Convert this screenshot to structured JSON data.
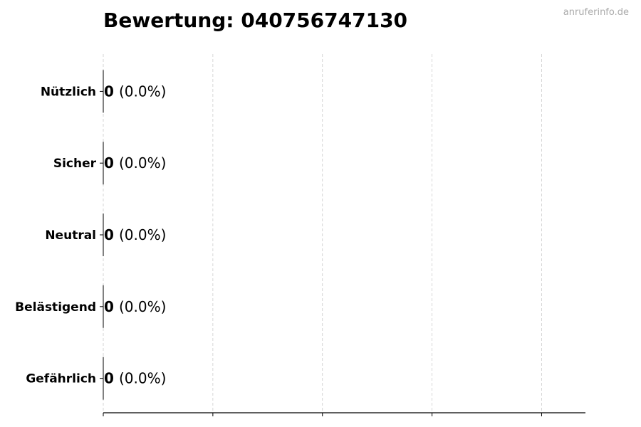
{
  "watermark": "anruferinfo.de",
  "chart_data": {
    "type": "bar",
    "orientation": "horizontal",
    "title": "Bewertung: 040756747130",
    "categories": [
      "Nützlich",
      "Sicher",
      "Neutral",
      "Belästigend",
      "Gefährlich"
    ],
    "values": [
      0,
      0,
      0,
      0,
      0
    ],
    "data_labels": [
      {
        "count": "0",
        "percent": "(0.0%)"
      },
      {
        "count": "0",
        "percent": "(0.0%)"
      },
      {
        "count": "0",
        "percent": "(0.0%)"
      },
      {
        "count": "0",
        "percent": "(0.0%)"
      },
      {
        "count": "0",
        "percent": "(0.0%)"
      }
    ],
    "xlabel": "",
    "ylabel": "",
    "xlim": [
      0,
      4.4
    ],
    "x_ticks": [
      0,
      1,
      2,
      3,
      4
    ],
    "x_tick_labels_shown": false,
    "grid": "x, dashed",
    "bar_color": "#000000"
  }
}
